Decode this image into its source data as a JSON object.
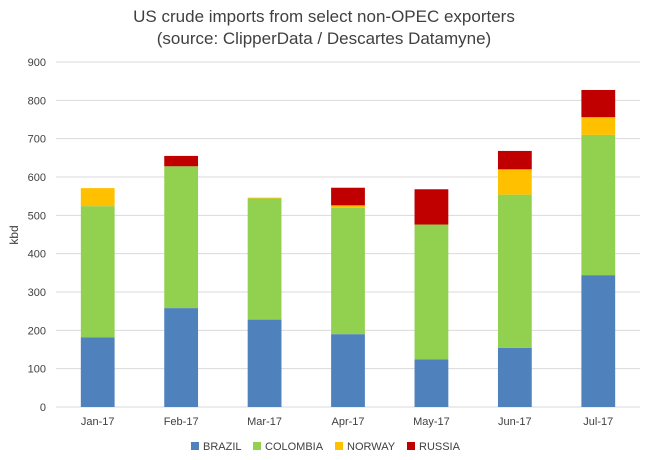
{
  "chart_data": {
    "type": "bar",
    "stacked": true,
    "title": "US crude imports from select non-OPEC exporters",
    "subtitle": "(source: ClipperData / Descartes Datamyne)",
    "ylabel": "kbd",
    "xlabel": "",
    "ylim": [
      0,
      900
    ],
    "yticks": [
      0,
      100,
      200,
      300,
      400,
      500,
      600,
      700,
      800,
      900
    ],
    "grid": true,
    "legend_position": "bottom",
    "categories": [
      "Jan-17",
      "Feb-17",
      "Mar-17",
      "Apr-17",
      "May-17",
      "Jun-17",
      "Jul-17"
    ],
    "series": [
      {
        "name": "BRAZIL",
        "color": "#4f81bd",
        "values": [
          182,
          258,
          228,
          190,
          124,
          154,
          344
        ]
      },
      {
        "name": "COLOMBIA",
        "color": "#92d050",
        "values": [
          342,
          370,
          316,
          330,
          352,
          400,
          366
        ]
      },
      {
        "name": "NORWAY",
        "color": "#ffc000",
        "values": [
          47,
          0,
          2,
          6,
          0,
          66,
          46
        ]
      },
      {
        "name": "RUSSIA",
        "color": "#c00000",
        "values": [
          0,
          27,
          0,
          46,
          92,
          48,
          71
        ]
      }
    ]
  }
}
